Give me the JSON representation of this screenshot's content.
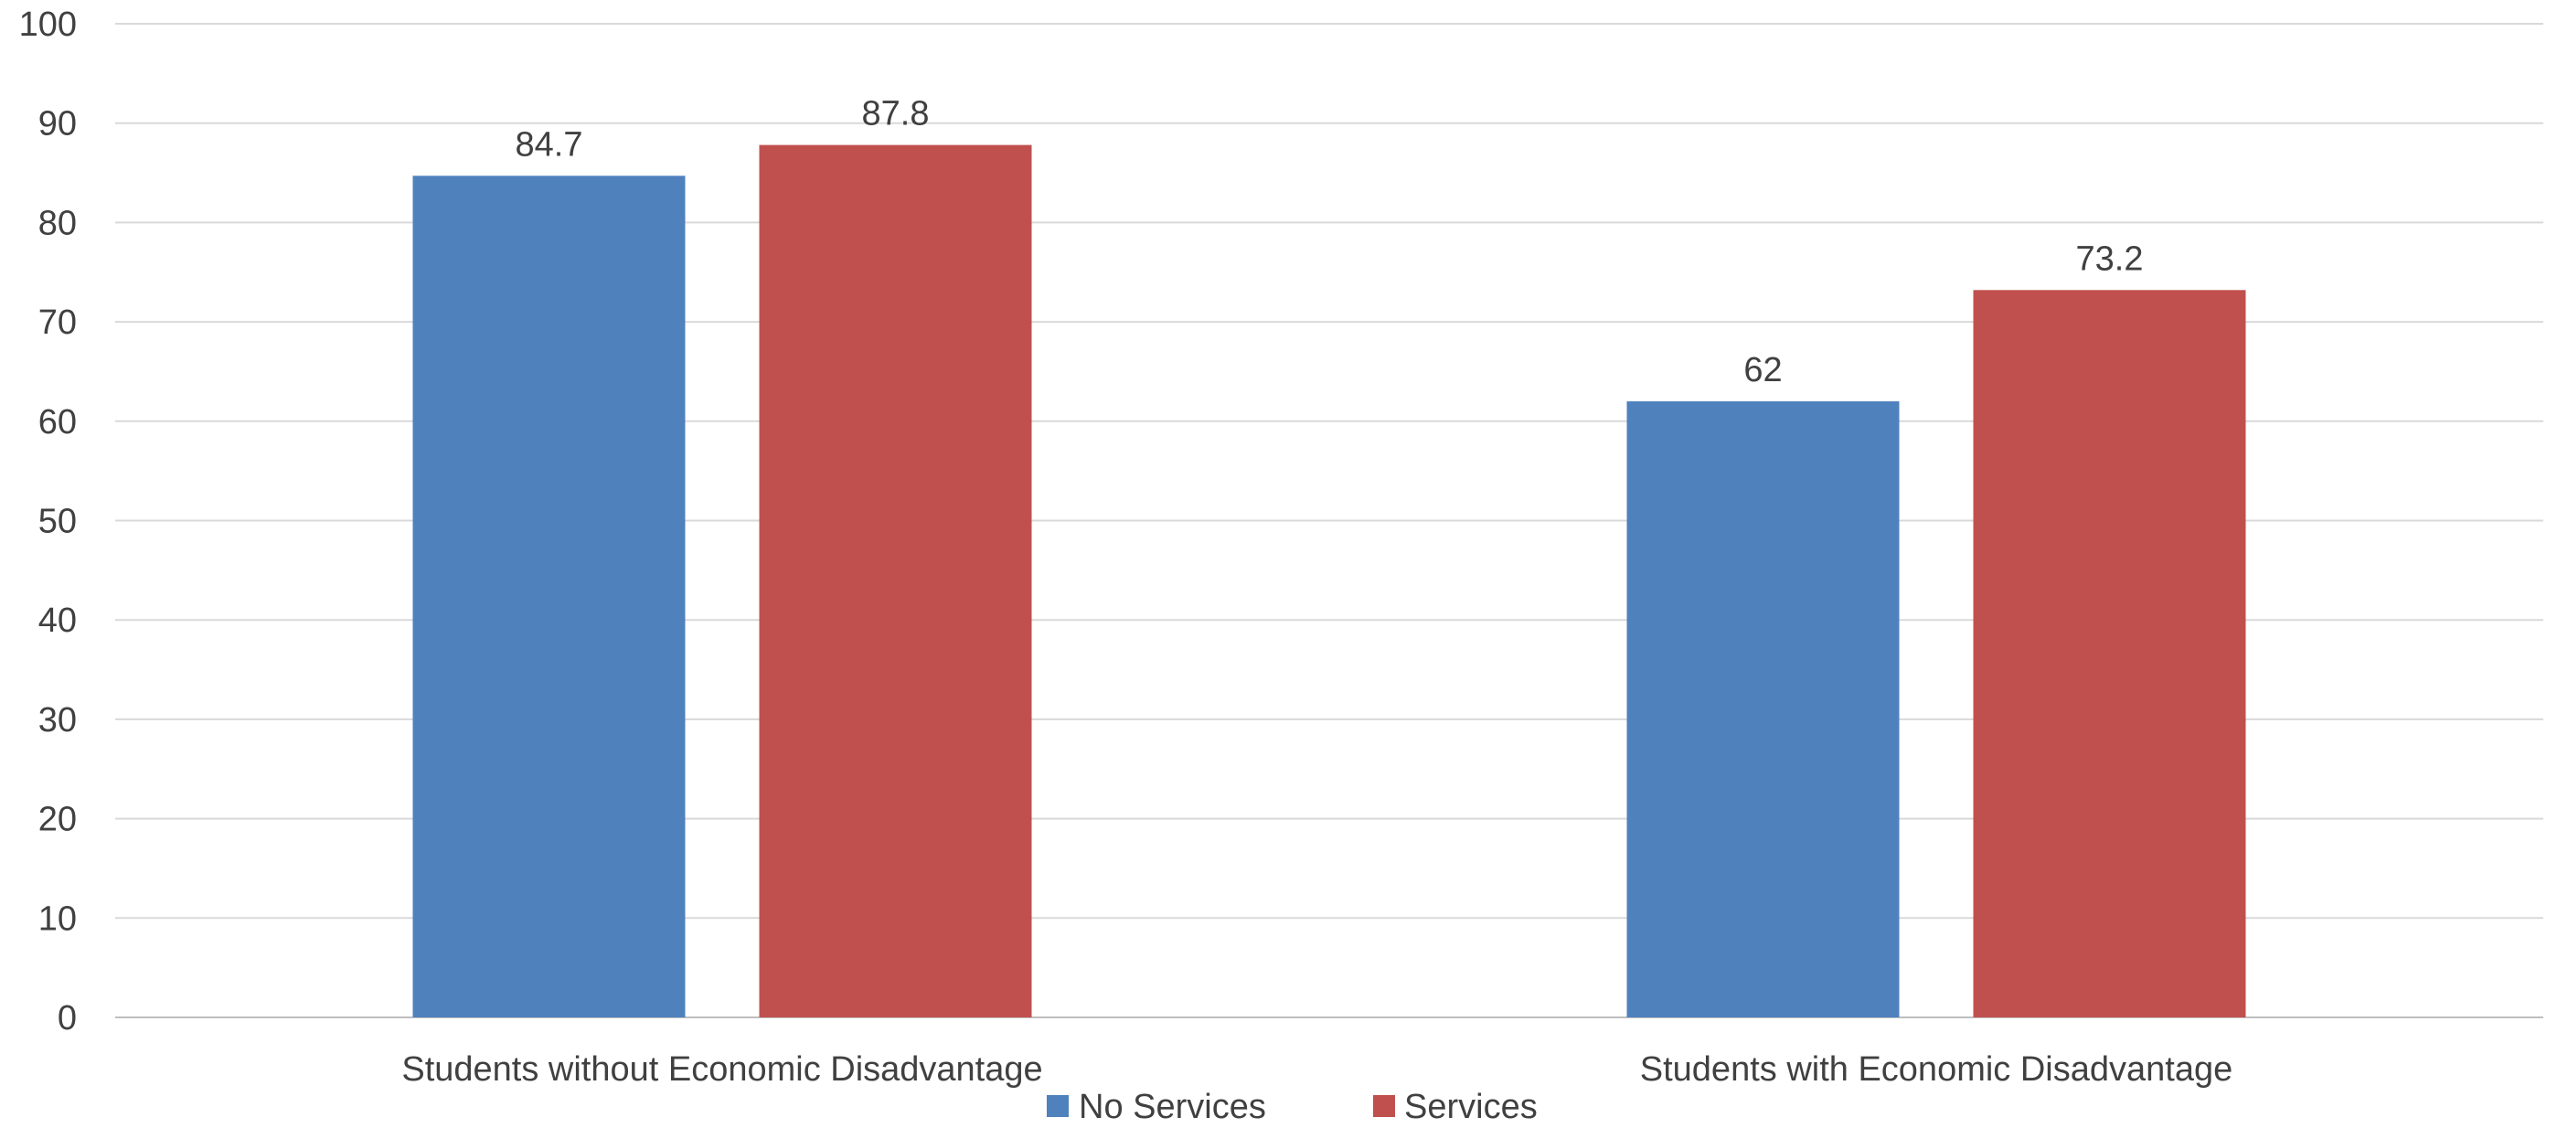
{
  "chart_data": {
    "type": "bar",
    "categories": [
      "Students without Economic Disadvantage",
      "Students with Economic Disadvantage"
    ],
    "series": [
      {
        "name": "No Services",
        "values": [
          84.7,
          62
        ],
        "labels": [
          "84.7",
          "62"
        ],
        "color": "#4F81BD"
      },
      {
        "name": "Services",
        "values": [
          87.8,
          73.2
        ],
        "labels": [
          "87.8",
          "73.2"
        ],
        "color": "#C0504D"
      }
    ],
    "ylim": [
      0,
      100
    ],
    "yticks": [
      "0",
      "10",
      "20",
      "30",
      "40",
      "50",
      "60",
      "70",
      "80",
      "90",
      "100"
    ],
    "grid": true,
    "legend": "bottom",
    "title": "",
    "xlabel": "",
    "ylabel": ""
  }
}
